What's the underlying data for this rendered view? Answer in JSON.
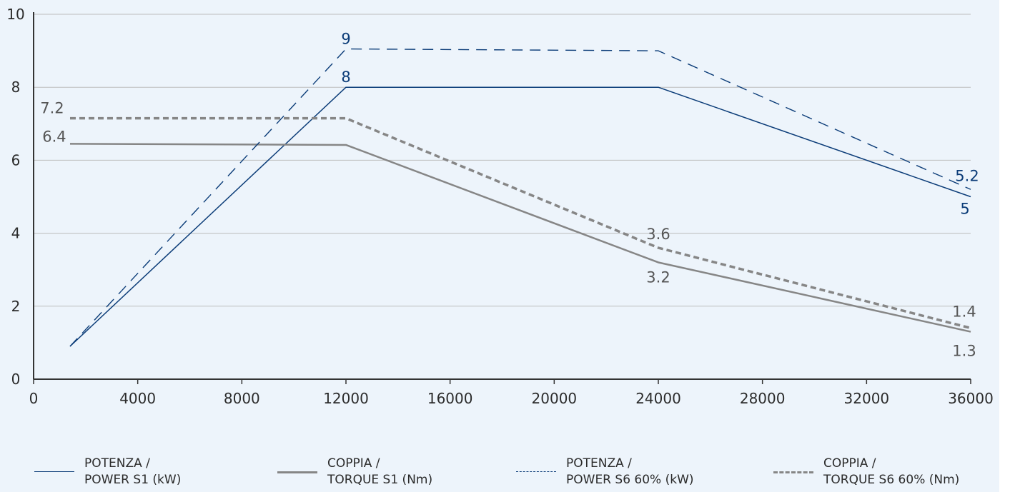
{
  "colors": {
    "background": "#edf4fb",
    "power": "#0b3c78",
    "torque": "#868686",
    "grid": "#bdbdbd",
    "axis": "#333333",
    "text": "#2b2b2b"
  },
  "chart_data": {
    "type": "line",
    "xlim": [
      0,
      36000
    ],
    "ylim": [
      0,
      10
    ],
    "x_ticks": [
      "0",
      "4000",
      "8000",
      "12000",
      "16000",
      "20000",
      "24000",
      "28000",
      "32000",
      "36000"
    ],
    "y_ticks": [
      "0",
      "2",
      "4",
      "6",
      "8",
      "10"
    ],
    "grid": "horizontal",
    "legend_position": "bottom",
    "series": [
      {
        "name": "POTENZA / POWER S1 (kW)",
        "color": "#0b3c78",
        "style": "solid-thin",
        "x": [
          1400,
          12000,
          24000,
          36000
        ],
        "y": [
          0.9,
          8.0,
          8.0,
          5.0
        ],
        "labels": [
          {
            "index": 1,
            "text": "8"
          },
          {
            "index": 3,
            "text": "5"
          }
        ]
      },
      {
        "name": "COPPIA / TORQUE S1 (Nm)",
        "color": "#868686",
        "style": "solid-thick",
        "x": [
          1400,
          12000,
          24000,
          36000
        ],
        "y": [
          6.45,
          6.42,
          3.2,
          1.3
        ],
        "labels": [
          {
            "index": 0,
            "text": "6.4"
          },
          {
            "index": 2,
            "text": "3.2"
          },
          {
            "index": 3,
            "text": "1.3"
          }
        ]
      },
      {
        "name": "POTENZA / POWER S6 60% (kW)",
        "color": "#0b3c78",
        "style": "dash-thin",
        "x": [
          1400,
          12000,
          24000,
          36000
        ],
        "y": [
          0.9,
          9.05,
          9.0,
          5.2
        ],
        "labels": [
          {
            "index": 1,
            "text": "9"
          },
          {
            "index": 3,
            "text": "5.2"
          }
        ]
      },
      {
        "name": "COPPIA / TORQUE S6 60% (Nm)",
        "color": "#868686",
        "style": "dash-thick",
        "x": [
          1400,
          12000,
          24000,
          36000
        ],
        "y": [
          7.15,
          7.15,
          3.6,
          1.4
        ],
        "labels": [
          {
            "index": 0,
            "text": "7.2"
          },
          {
            "index": 2,
            "text": "3.6"
          },
          {
            "index": 3,
            "text": "1.4"
          }
        ]
      }
    ]
  },
  "legend": [
    {
      "line1": "POTENZA /",
      "line2": "POWER S1 (kW)",
      "style": "solid-thin",
      "color": "#0b3c78"
    },
    {
      "line1": "COPPIA /",
      "line2": "TORQUE S1 (Nm)",
      "style": "solid-thick",
      "color": "#868686"
    },
    {
      "line1": "POTENZA /",
      "line2": "POWER S6 60% (kW)",
      "style": "dash-thin",
      "color": "#0b3c78"
    },
    {
      "line1": "COPPIA /",
      "line2": "TORQUE S6 60% (Nm)",
      "style": "dash-thick",
      "color": "#868686"
    }
  ]
}
